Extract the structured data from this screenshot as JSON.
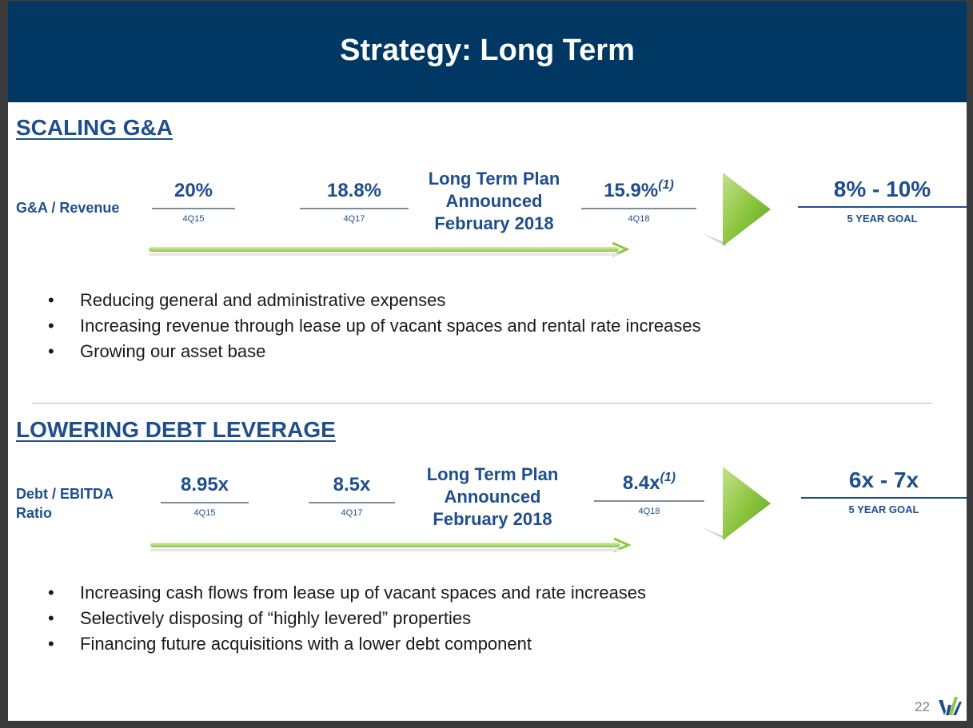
{
  "title": "Strategy: Long Term",
  "sections": [
    {
      "heading": "SCALING G&A",
      "row_label": "G&A / Revenue",
      "metrics": [
        {
          "value": "20%",
          "period": "4Q15"
        },
        {
          "value": "18.8%",
          "period": "4Q17"
        },
        {
          "value": "15.9%",
          "footnote": "(1)",
          "period": "4Q18"
        }
      ],
      "plan": {
        "line1": "Long Term Plan",
        "line2": "Announced",
        "line3": "February 2018"
      },
      "goal": {
        "value": "8% - 10%",
        "label": "5 YEAR GOAL"
      },
      "bullets": [
        "Reducing general and administrative expenses",
        "Increasing revenue through lease up of vacant spaces and rental rate increases",
        "Growing our asset base"
      ]
    },
    {
      "heading": "LOWERING DEBT LEVERAGE",
      "row_label_line1": "Debt / EBITDA",
      "row_label_line2": "Ratio",
      "metrics": [
        {
          "value": "8.95x",
          "period": "4Q15"
        },
        {
          "value": "8.5x",
          "period": "4Q17"
        },
        {
          "value": "8.4x",
          "footnote": "(1)",
          "period": "4Q18"
        }
      ],
      "plan": {
        "line1": "Long Term Plan",
        "line2": "Announced",
        "line3": "February 2018"
      },
      "goal": {
        "value": "6x - 7x",
        "label": "5 YEAR GOAL"
      },
      "bullets": [
        "Increasing cash flows from lease up of vacant spaces and rate increases",
        "Selectively disposing of “highly levered” properties",
        "Financing future acquisitions with a lower debt component"
      ]
    }
  ],
  "page_number": "22",
  "colors": {
    "brand": "#003763",
    "text_blue": "#1f4e8c",
    "accent_green": "#8dc63f"
  }
}
